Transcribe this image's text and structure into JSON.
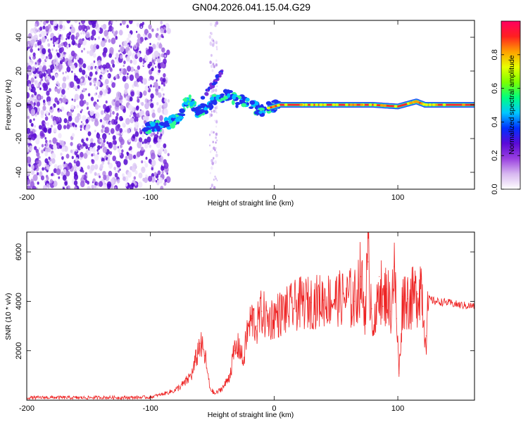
{
  "title": "GN04.2026.041.15.04.G29",
  "chart_data": [
    {
      "id": "spectrogram",
      "type": "heatmap",
      "xlabel": "Height of straight line (km)",
      "ylabel": "Frequency (Hz)",
      "xlim": [
        -200,
        162
      ],
      "ylim": [
        -50,
        50
      ],
      "xticks": [
        -200,
        -100,
        0,
        100
      ],
      "yticks": [
        -40,
        -20,
        0,
        20,
        40
      ],
      "ridge": [
        {
          "x": -105,
          "y": -15
        },
        {
          "x": -98,
          "y": -13
        },
        {
          "x": -90,
          "y": -12
        },
        {
          "x": -82,
          "y": -10
        },
        {
          "x": -75,
          "y": -6
        },
        {
          "x": -72,
          "y": 1
        },
        {
          "x": -68,
          "y": 2
        },
        {
          "x": -62,
          "y": -4
        },
        {
          "x": -55,
          "y": -2
        },
        {
          "x": -48,
          "y": 4
        },
        {
          "x": -42,
          "y": 5
        },
        {
          "x": -36,
          "y": 6
        },
        {
          "x": -30,
          "y": 2
        },
        {
          "x": -22,
          "y": 2
        },
        {
          "x": -15,
          "y": -2
        },
        {
          "x": -10,
          "y": -3
        },
        {
          "x": -5,
          "y": -2
        },
        {
          "x": 5,
          "y": 0
        },
        {
          "x": 40,
          "y": 0
        },
        {
          "x": 80,
          "y": 0
        },
        {
          "x": 100,
          "y": -1
        },
        {
          "x": 115,
          "y": 2
        },
        {
          "x": 122,
          "y": 0
        },
        {
          "x": 162,
          "y": 0
        }
      ],
      "colorbar": {
        "label": "Normalized spectral amplitude",
        "range": [
          0,
          1
        ],
        "ticks": [
          0.0,
          0.2,
          0.4,
          0.6,
          0.8
        ],
        "tick_labels": [
          "0.0",
          "0.2",
          "0.4",
          "0.6",
          "0.8"
        ],
        "colors": [
          "#ffffff",
          "#d8b8f0",
          "#9a40e0",
          "#5a0ad8",
          "#0030ff",
          "#00c8ff",
          "#00ff80",
          "#7cff00",
          "#e8ff00",
          "#ffa000",
          "#ff2020",
          "#ff0060"
        ]
      }
    },
    {
      "id": "snr",
      "type": "line",
      "xlabel": "Height of straight line (km)",
      "ylabel": "SNR (10 * v/v)",
      "xlim": [
        -200,
        162
      ],
      "ylim": [
        0,
        6800
      ],
      "xticks": [
        -200,
        -100,
        0,
        100
      ],
      "yticks": [
        2000,
        4000,
        6000
      ],
      "series": [
        {
          "name": "SNR",
          "color": "#ee2222",
          "points": [
            {
              "x": -200,
              "y": 100
            },
            {
              "x": -180,
              "y": 110
            },
            {
              "x": -160,
              "y": 100
            },
            {
              "x": -140,
              "y": 110
            },
            {
              "x": -120,
              "y": 105
            },
            {
              "x": -100,
              "y": 120
            },
            {
              "x": -90,
              "y": 250
            },
            {
              "x": -80,
              "y": 400
            },
            {
              "x": -72,
              "y": 700
            },
            {
              "x": -66,
              "y": 1100
            },
            {
              "x": -60,
              "y": 2300
            },
            {
              "x": -56,
              "y": 1800
            },
            {
              "x": -52,
              "y": 500
            },
            {
              "x": -48,
              "y": 250
            },
            {
              "x": -44,
              "y": 400
            },
            {
              "x": -40,
              "y": 600
            },
            {
              "x": -36,
              "y": 1000
            },
            {
              "x": -32,
              "y": 2000
            },
            {
              "x": -28,
              "y": 2200
            },
            {
              "x": -25,
              "y": 1500
            },
            {
              "x": -22,
              "y": 2700
            },
            {
              "x": -18,
              "y": 3300
            },
            {
              "x": -14,
              "y": 3000
            },
            {
              "x": -10,
              "y": 3600
            },
            {
              "x": -5,
              "y": 3200
            },
            {
              "x": 0,
              "y": 3400
            },
            {
              "x": 10,
              "y": 3600
            },
            {
              "x": 20,
              "y": 3900
            },
            {
              "x": 30,
              "y": 3950
            },
            {
              "x": 40,
              "y": 4050
            },
            {
              "x": 50,
              "y": 4100
            },
            {
              "x": 60,
              "y": 4150
            },
            {
              "x": 65,
              "y": 4000
            },
            {
              "x": 70,
              "y": 5000
            },
            {
              "x": 73,
              "y": 3600
            },
            {
              "x": 76,
              "y": 5600
            },
            {
              "x": 79,
              "y": 3700
            },
            {
              "x": 82,
              "y": 2800
            },
            {
              "x": 85,
              "y": 5000
            },
            {
              "x": 88,
              "y": 3800
            },
            {
              "x": 91,
              "y": 4500
            },
            {
              "x": 94,
              "y": 3600
            },
            {
              "x": 97,
              "y": 5400
            },
            {
              "x": 99,
              "y": 3300
            },
            {
              "x": 101,
              "y": 1100
            },
            {
              "x": 104,
              "y": 4200
            },
            {
              "x": 108,
              "y": 4100
            },
            {
              "x": 112,
              "y": 4100
            },
            {
              "x": 116,
              "y": 4300
            },
            {
              "x": 119,
              "y": 4900
            },
            {
              "x": 121,
              "y": 3200
            },
            {
              "x": 123,
              "y": 2600
            },
            {
              "x": 125,
              "y": 4100
            },
            {
              "x": 130,
              "y": 4000
            },
            {
              "x": 140,
              "y": 3950
            },
            {
              "x": 150,
              "y": 3850
            },
            {
              "x": 162,
              "y": 3800
            }
          ]
        }
      ]
    }
  ]
}
